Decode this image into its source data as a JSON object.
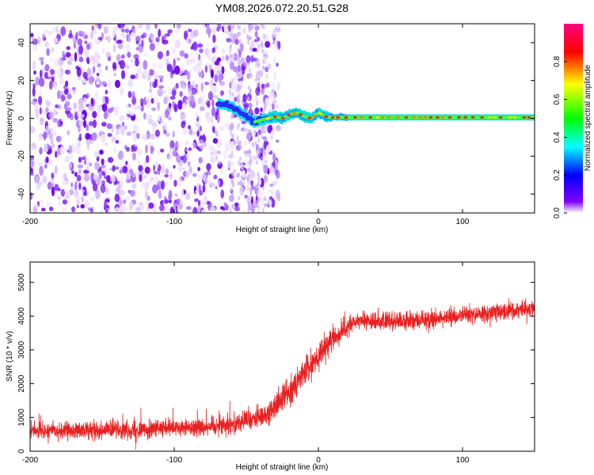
{
  "title": "YM08.2026.072.20.51.G28",
  "chart_data": [
    {
      "type": "heatmap",
      "title": "YM08.2026.072.20.51.G28",
      "xlabel": "Height of straight line (km)",
      "ylabel": "Frequency (Hz)",
      "xlim": [
        -200,
        150
      ],
      "ylim": [
        -50,
        50
      ],
      "xticks": [
        "-200",
        "-100",
        "0",
        "100"
      ],
      "yticks": [
        "-40",
        "-20",
        "0",
        "20",
        "40"
      ],
      "colorbar": {
        "label": "Normalized spectral amplitude",
        "range": [
          0,
          1
        ],
        "ticks": [
          "0.0",
          "0.2",
          "0.4",
          "0.6",
          "0.8"
        ],
        "colors": [
          "#ffffff",
          "#8000ff",
          "#0000ff",
          "#00ffff",
          "#00ff00",
          "#ffff00",
          "#ff0000",
          "#ff0080"
        ]
      },
      "features": {
        "noise_region_x": [
          -200,
          -33
        ],
        "noise_amplitude": 0.15,
        "signal_start_x": -70,
        "signal_line": [
          [
            -70,
            8
          ],
          [
            -60,
            6
          ],
          [
            -50,
            1
          ],
          [
            -45,
            -2
          ],
          [
            -40,
            -1
          ],
          [
            -35,
            0
          ],
          [
            -30,
            1
          ],
          [
            -25,
            0
          ],
          [
            -20,
            2
          ],
          [
            -15,
            3
          ],
          [
            -10,
            1
          ],
          [
            -5,
            0
          ],
          [
            0,
            3
          ],
          [
            5,
            1
          ],
          [
            10,
            0.5
          ],
          [
            20,
            0.5
          ],
          [
            50,
            0.5
          ],
          [
            100,
            0.5
          ],
          [
            150,
            0.5
          ]
        ]
      }
    },
    {
      "type": "line",
      "xlabel": "Height of straight line (km)",
      "ylabel": "SNR (10 * v/v)",
      "xlim": [
        -200,
        150
      ],
      "ylim": [
        0,
        5600
      ],
      "xticks": [
        "-200",
        "-100",
        "0",
        "100"
      ],
      "yticks": [
        "0",
        "1000",
        "2000",
        "3000",
        "4000",
        "5000"
      ],
      "color": "#e82020",
      "series": [
        {
          "name": "SNR",
          "x": [
            -200,
            -180,
            -160,
            -140,
            -120,
            -100,
            -80,
            -60,
            -40,
            -30,
            -20,
            -10,
            0,
            10,
            20,
            30,
            40,
            60,
            80,
            100,
            120,
            140,
            150
          ],
          "values": [
            600,
            600,
            620,
            640,
            650,
            680,
            720,
            820,
            1000,
            1300,
            1800,
            2300,
            2800,
            3300,
            3700,
            3850,
            3850,
            3850,
            3900,
            4000,
            4100,
            4200,
            4250
          ],
          "noise": [
            350,
            350,
            350,
            350,
            350,
            350,
            380,
            400,
            450,
            500,
            550,
            550,
            500,
            450,
            400,
            350,
            350,
            350,
            350,
            350,
            350,
            350,
            350
          ]
        }
      ]
    }
  ]
}
